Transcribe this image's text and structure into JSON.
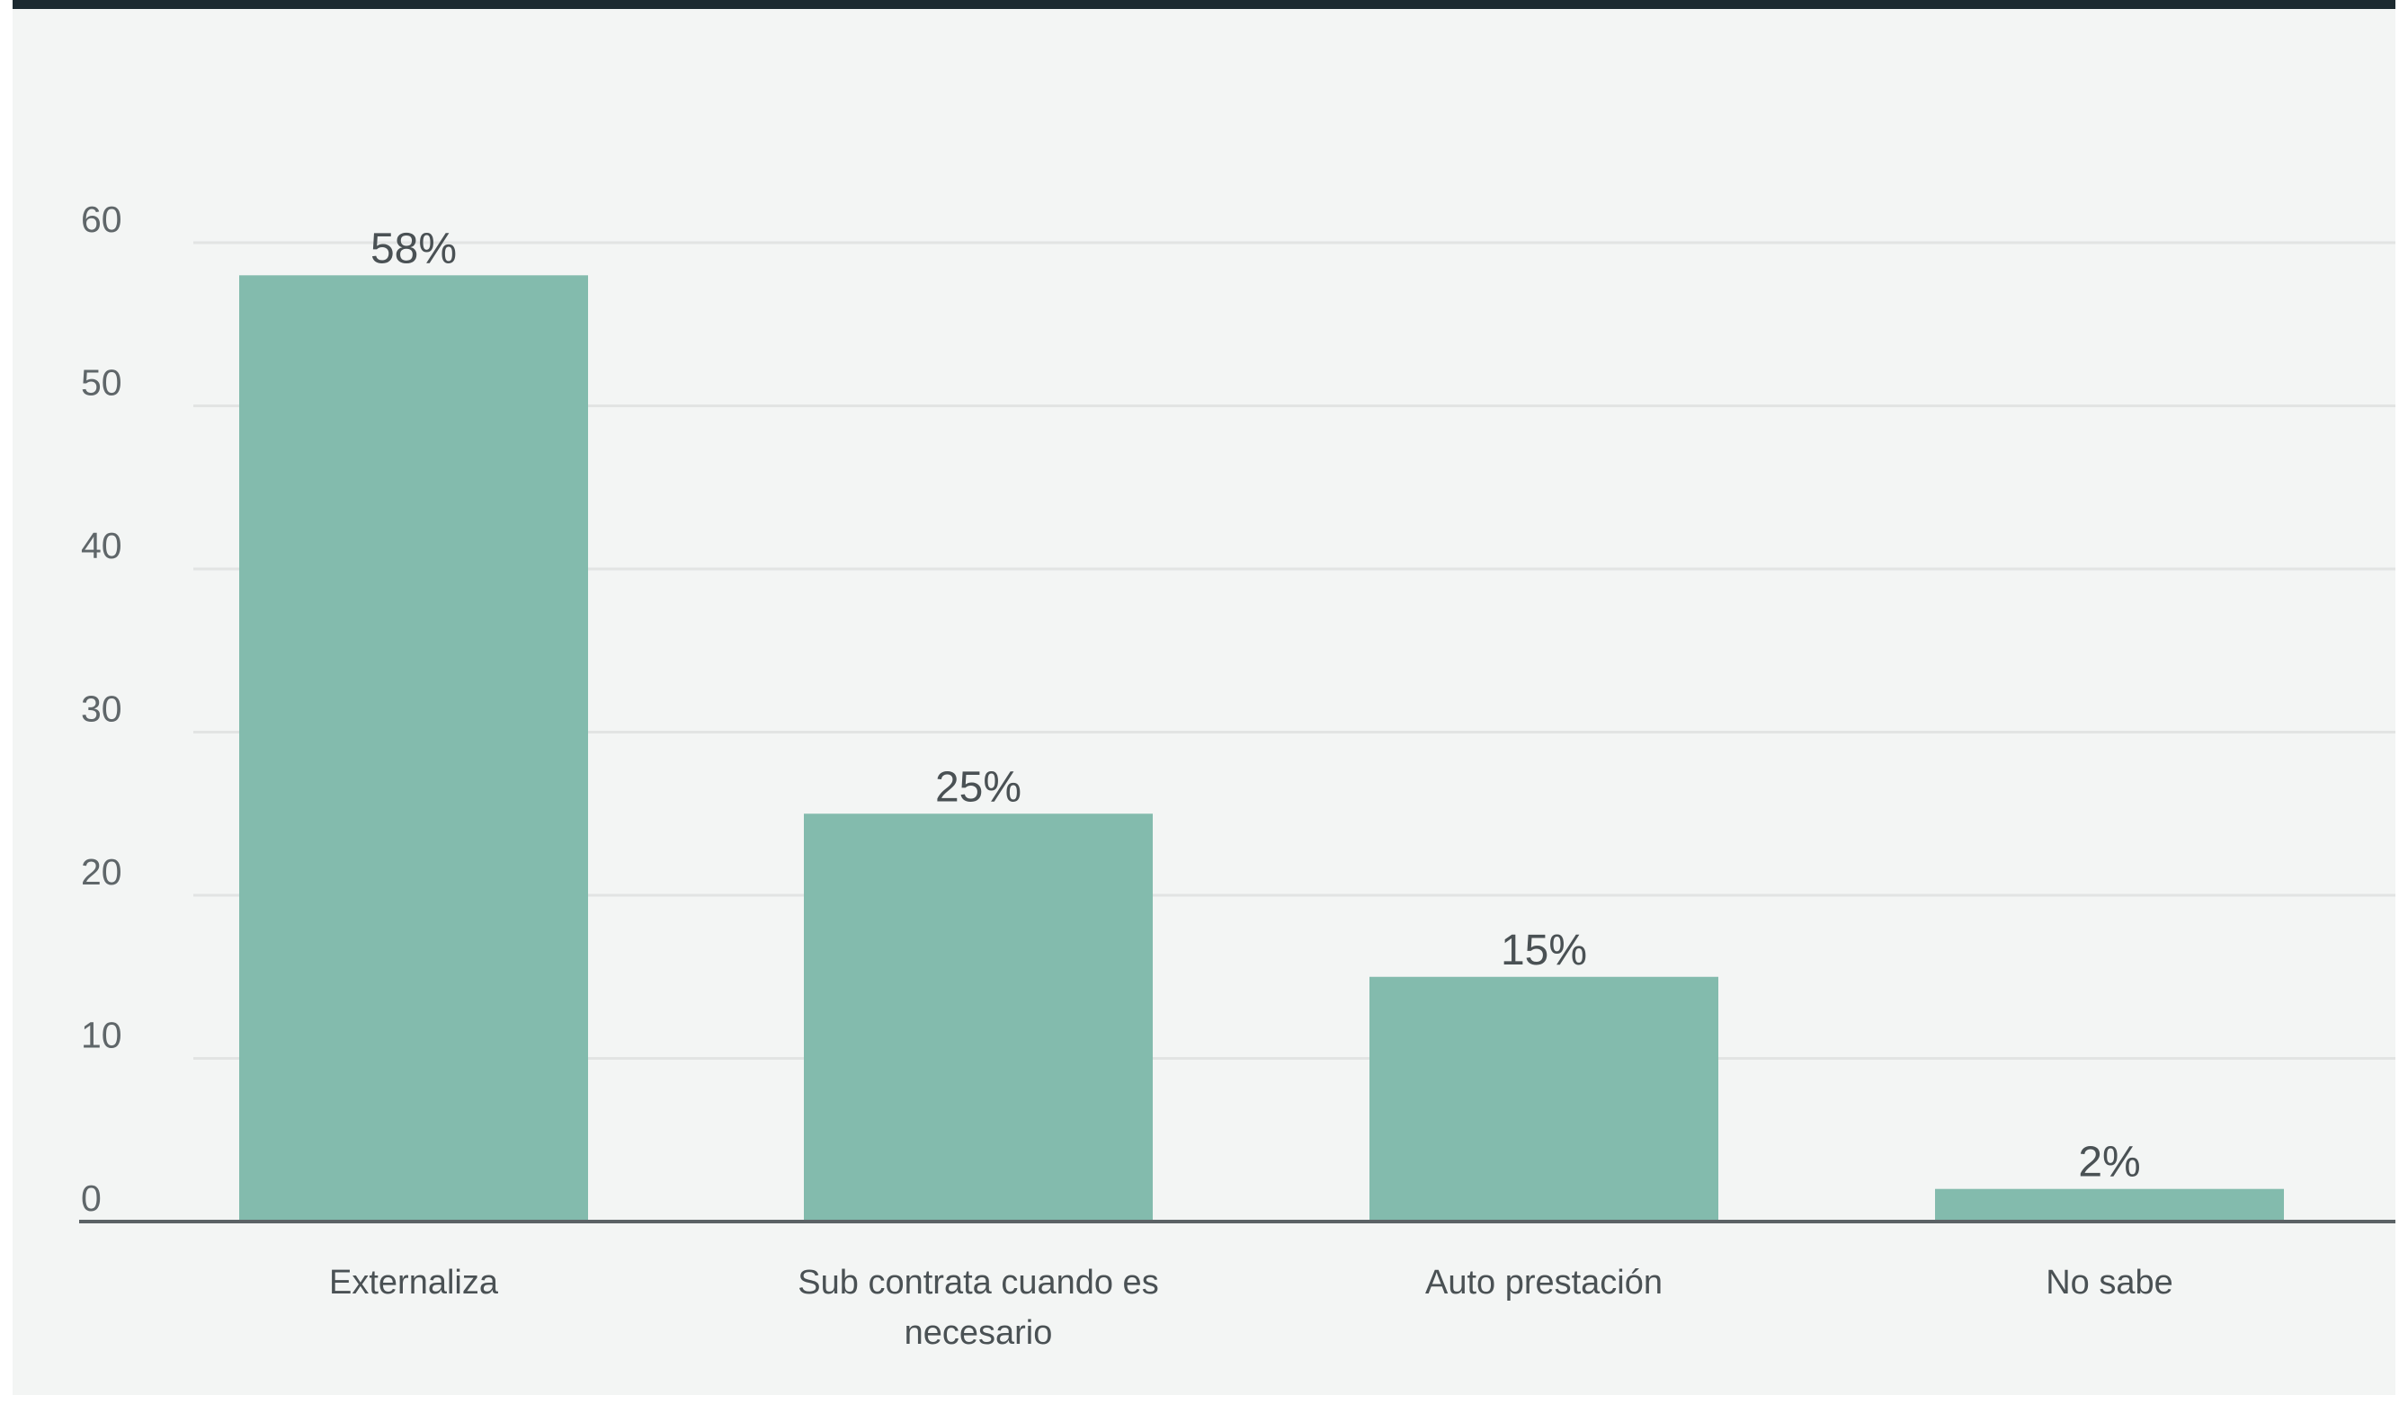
{
  "chart_data": {
    "type": "bar",
    "categories": [
      [
        "Externaliza"
      ],
      [
        "Sub contrata cuando es",
        "necesario"
      ],
      [
        "Auto prestación"
      ],
      [
        "No sabe"
      ]
    ],
    "values": [
      58,
      25,
      15,
      2
    ],
    "data_labels": [
      "58%",
      "25%",
      "15%",
      "2%"
    ],
    "y_ticks": [
      "0",
      "10",
      "20",
      "30",
      "40",
      "50",
      "60"
    ],
    "ylim": [
      0,
      60
    ],
    "grid": true,
    "bar_color": "#83bbad",
    "gridline_color": "#e2e4e3",
    "axis_color": "#5b6265",
    "background_color": "#f3f5f4",
    "top_rule_color": "#1c2a30"
  }
}
